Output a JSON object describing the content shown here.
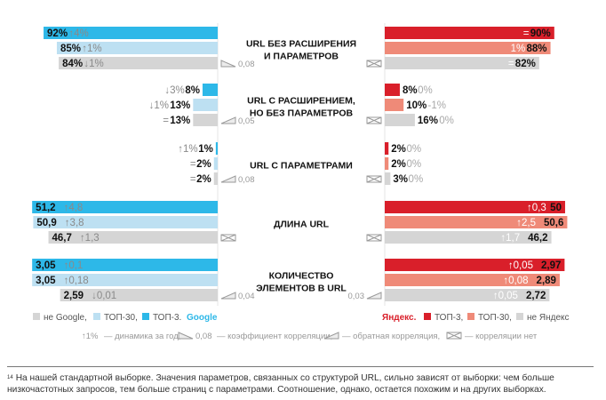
{
  "colors": {
    "google_top3": "#2db8e8",
    "google_top30": "#bde0f2",
    "not_google": "#d5d5d5",
    "yandex_top3": "#d91f2a",
    "yandex_top30": "#ef8a78",
    "not_yandex": "#d5d5d5",
    "positive": "#aaaaaa",
    "negative": "#aaaaaa"
  },
  "chart_data": {
    "type": "bar",
    "orientation": "horizontal-butterfly",
    "sides": [
      "Google",
      "Yandex"
    ],
    "series": [
      "TOP-3",
      "TOP-30",
      "not in search engine"
    ],
    "categories": [
      {
        "title_lines": [
          "URL БЕЗ РАСШИРЕНИЯ",
          "И ПАРАМЕТРОВ"
        ],
        "unit": "%",
        "google": [
          {
            "label": "92%",
            "value": 92,
            "delta": "↑4%"
          },
          {
            "label": "85%",
            "value": 85,
            "delta": "↑1%"
          },
          {
            "label": "84%",
            "value": 84,
            "delta": "↓1%"
          }
        ],
        "yandex": [
          {
            "label": "90%",
            "value": 90,
            "delta": "="
          },
          {
            "label": "88%",
            "value": 88,
            "delta": "1%"
          },
          {
            "label": "82%",
            "value": 82,
            "delta": "="
          }
        ],
        "google_corr": "0,08",
        "google_corr_icon": "positive",
        "yandex_corr": "",
        "yandex_corr_icon": "none"
      },
      {
        "title_lines": [
          "URL С РАСШИРЕНИЕМ,",
          "НО БЕЗ ПАРАМЕТРОВ"
        ],
        "unit": "%",
        "google": [
          {
            "label": "8%",
            "value": 8,
            "delta": "↓3%"
          },
          {
            "label": "13%",
            "value": 13,
            "delta": "↓1%"
          },
          {
            "label": "13%",
            "value": 13,
            "delta": "="
          }
        ],
        "yandex": [
          {
            "label": "8%",
            "value": 8,
            "delta": "0%"
          },
          {
            "label": "10%",
            "value": 10,
            "delta": "-1%"
          },
          {
            "label": "16%",
            "value": 16,
            "delta": "0%"
          }
        ],
        "google_corr": "0,05",
        "google_corr_icon": "negative",
        "yandex_corr": "",
        "yandex_corr_icon": "none"
      },
      {
        "title_lines": [
          "URL С ПАРАМЕТРАМИ"
        ],
        "unit": "%",
        "google": [
          {
            "label": "1%",
            "value": 1,
            "delta": "↑1%"
          },
          {
            "label": "2%",
            "value": 2,
            "delta": "="
          },
          {
            "label": "2%",
            "value": 2,
            "delta": "="
          }
        ],
        "yandex": [
          {
            "label": "2%",
            "value": 2,
            "delta": "0%"
          },
          {
            "label": "2%",
            "value": 2,
            "delta": "0%"
          },
          {
            "label": "3%",
            "value": 3,
            "delta": "0%"
          }
        ],
        "google_corr": "0,08",
        "google_corr_icon": "negative",
        "yandex_corr": "",
        "yandex_corr_icon": "none"
      },
      {
        "title_lines": [
          "ДЛИНА URL"
        ],
        "unit": "chars",
        "google": [
          {
            "label": "51,2",
            "value": 51.2,
            "delta": "↑4,8"
          },
          {
            "label": "50,9",
            "value": 50.9,
            "delta": "↑3,8"
          },
          {
            "label": "46,7",
            "value": 46.7,
            "delta": "↑1,3"
          }
        ],
        "yandex": [
          {
            "label": "50",
            "value": 50,
            "delta": "↑0,3"
          },
          {
            "label": "50,6",
            "value": 50.6,
            "delta": "↑2,5"
          },
          {
            "label": "46,2",
            "value": 46.2,
            "delta": "↑1,7"
          }
        ],
        "google_corr": "",
        "google_corr_icon": "none",
        "yandex_corr": "",
        "yandex_corr_icon": "none"
      },
      {
        "title_lines": [
          "КОЛИЧЕСТВО",
          "ЭЛЕМЕНТОВ В URL"
        ],
        "unit": "count",
        "google": [
          {
            "label": "3,05",
            "value": 3.05,
            "delta": "↑0,1"
          },
          {
            "label": "3,05",
            "value": 3.05,
            "delta": "↑0,18"
          },
          {
            "label": "2,59",
            "value": 2.59,
            "delta": "↓0,01"
          }
        ],
        "yandex": [
          {
            "label": "2,97",
            "value": 2.97,
            "delta": "↑0,05"
          },
          {
            "label": "2,89",
            "value": 2.89,
            "delta": "↑0,08"
          },
          {
            "label": "2,72",
            "value": 2.72,
            "delta": "↑0,05"
          }
        ],
        "google_corr": "0,04",
        "google_corr_icon": "negative",
        "yandex_corr": "0,03",
        "yandex_corr_icon": "negative"
      }
    ],
    "legend": {
      "google": {
        "not": "не Google,",
        "top30": "ТОП-30,",
        "top3": "ТОП-3.",
        "brand": "Google"
      },
      "yandex": {
        "brand": "Яндекс.",
        "top3": "ТОП-3,",
        "top30": "ТОП-30,",
        "not": "не Яндекс"
      }
    },
    "legend_note": {
      "dynamics_sample": "↑1%",
      "dynamics_text": "— динамика за год,",
      "corr_sample": "0,08",
      "corr_text": "— коэффициент корреляции,",
      "inverse_text": "— обратная корреляция,",
      "none_text": "— корреляции нет"
    }
  },
  "footnote": {
    "marker": "14",
    "text": "На нашей стандартной выборке. Значения параметров, связанных со структурой URL, сильно зависят от выборки: чем больше низкочастотных запросов, тем больше страниц с параметрами. Соотношение, однако, остается похожим и на других выборках."
  }
}
